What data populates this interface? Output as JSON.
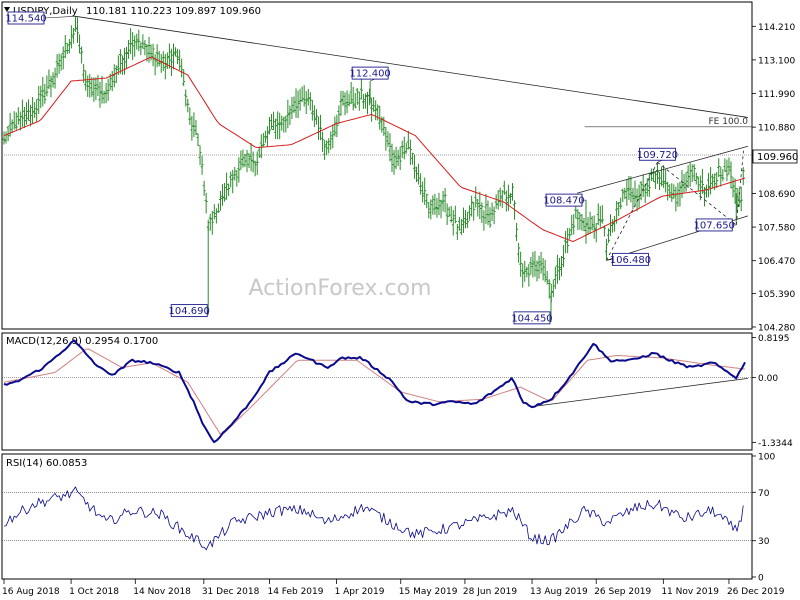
{
  "header": {
    "symbol": "USDJPY,Daily",
    "ohlc": "110.181 110.223 109.897 109.960",
    "collapse_icon": "triangle-down-icon"
  },
  "watermark": "ActionForex.com",
  "colors": {
    "price": "#2a8a2a",
    "ma": "#d81b1b",
    "macd": "#0a0a8c",
    "signal": "#d08080",
    "label_border": "#1a1a8c",
    "grid_dotted": "#000000"
  },
  "chart_data": [
    {
      "type": "bar",
      "title": "USDJPY,Daily",
      "subtitle": "110.181 110.223 109.897 109.960",
      "ylim": [
        104.28,
        114.88
      ],
      "y_ticks": [
        "114.210",
        "113.100",
        "111.990",
        "110.880",
        "109.960",
        "108.690",
        "107.580",
        "106.470",
        "105.390",
        "104.280"
      ],
      "last_price": "109.960",
      "x_ticks": [
        "16 Aug 2018",
        "1 Oct 2018",
        "14 Nov 2018",
        "31 Dec 2018",
        "14 Feb 2019",
        "1 Apr 2019",
        "15 May 2019",
        "28 Jun 2019",
        "13 Aug 2019",
        "26 Sep 2019",
        "11 Nov 2019",
        "26 Dec 2019"
      ],
      "x_range": [
        "2018-08-16",
        "2020-01-06"
      ],
      "series": [
        {
          "style": "ohlc-bars",
          "anchors": [
            [
              "2018-08-16",
              110.5
            ],
            [
              "2018-08-25",
              111.1
            ],
            [
              "2018-09-05",
              111.4
            ],
            [
              "2018-09-20",
              112.6
            ],
            [
              "2018-10-04",
              114.2
            ],
            [
              "2018-10-12",
              112.2
            ],
            [
              "2018-10-25",
              112.0
            ],
            [
              "2018-11-05",
              113.1
            ],
            [
              "2018-11-13",
              113.8
            ],
            [
              "2018-11-25",
              113.3
            ],
            [
              "2018-12-05",
              113.0
            ],
            [
              "2018-12-14",
              113.3
            ],
            [
              "2018-12-21",
              111.2
            ],
            [
              "2018-12-28",
              110.3
            ],
            [
              "2019-01-03",
              107.6
            ],
            [
              "2019-01-11",
              108.4
            ],
            [
              "2019-01-24",
              109.6
            ],
            [
              "2019-02-05",
              109.8
            ],
            [
              "2019-02-14",
              110.8
            ],
            [
              "2019-02-25",
              111.1
            ],
            [
              "2019-03-05",
              111.8
            ],
            [
              "2019-03-15",
              111.6
            ],
            [
              "2019-03-25",
              110.1
            ],
            [
              "2019-04-05",
              111.7
            ],
            [
              "2019-04-20",
              111.9
            ],
            [
              "2019-04-30",
              111.3
            ],
            [
              "2019-05-10",
              109.8
            ],
            [
              "2019-05-20",
              110.3
            ],
            [
              "2019-06-03",
              108.2
            ],
            [
              "2019-06-14",
              108.4
            ],
            [
              "2019-06-25",
              107.4
            ],
            [
              "2019-07-05",
              108.4
            ],
            [
              "2019-07-15",
              107.9
            ],
            [
              "2019-07-25",
              108.7
            ],
            [
              "2019-07-31",
              108.6
            ],
            [
              "2019-08-06",
              105.9
            ],
            [
              "2019-08-20",
              106.5
            ],
            [
              "2019-08-26",
              105.4
            ],
            [
              "2019-09-05",
              106.9
            ],
            [
              "2019-09-12",
              108.0
            ],
            [
              "2019-09-20",
              107.6
            ],
            [
              "2019-10-01",
              107.8
            ],
            [
              "2019-10-03",
              107.0
            ],
            [
              "2019-10-15",
              108.7
            ],
            [
              "2019-10-25",
              108.7
            ],
            [
              "2019-11-05",
              109.2
            ],
            [
              "2019-11-12",
              109.0
            ],
            [
              "2019-11-20",
              108.5
            ],
            [
              "2019-11-30",
              109.5
            ],
            [
              "2019-12-10",
              108.7
            ],
            [
              "2019-12-19",
              109.4
            ],
            [
              "2019-12-26",
              109.5
            ],
            [
              "2019-12-31",
              108.7
            ],
            [
              "2020-01-03",
              108.2
            ],
            [
              "2020-01-06",
              109.96
            ]
          ]
        },
        {
          "style": "moving-average",
          "anchors": [
            [
              "2018-08-16",
              110.6
            ],
            [
              "2018-09-10",
              111.1
            ],
            [
              "2018-10-01",
              112.4
            ],
            [
              "2018-10-25",
              112.5
            ],
            [
              "2018-11-25",
              113.2
            ],
            [
              "2018-12-20",
              112.6
            ],
            [
              "2019-01-10",
              111.0
            ],
            [
              "2019-02-05",
              110.2
            ],
            [
              "2019-03-01",
              110.3
            ],
            [
              "2019-04-01",
              111.0
            ],
            [
              "2019-04-25",
              111.3
            ],
            [
              "2019-05-25",
              110.6
            ],
            [
              "2019-06-25",
              108.9
            ],
            [
              "2019-07-25",
              108.4
            ],
            [
              "2019-08-20",
              107.5
            ],
            [
              "2019-09-10",
              107.1
            ],
            [
              "2019-10-10",
              107.8
            ],
            [
              "2019-11-10",
              108.6
            ],
            [
              "2019-12-10",
              108.8
            ],
            [
              "2020-01-06",
              109.2
            ]
          ]
        }
      ],
      "annotations": [
        "114.540",
        "112.400",
        "104.690",
        "108.470",
        "109.720",
        "106.480",
        "107.650",
        "104.450",
        "FE 100.0"
      ],
      "markers": [
        {
          "label": "114.540",
          "date": "2018-10-04",
          "value": 114.54
        },
        {
          "label": "112.400",
          "date": "2019-04-24",
          "value": 112.4
        },
        {
          "label": "104.690",
          "date": "2019-01-03",
          "value": 104.69
        },
        {
          "label": "108.470",
          "date": "2019-09-19",
          "value": 108.47
        },
        {
          "label": "109.720",
          "date": "2019-11-07",
          "value": 109.72
        },
        {
          "label": "106.480",
          "date": "2019-10-03",
          "value": 106.48
        },
        {
          "label": "107.650",
          "date": "2019-12-31",
          "value": 107.65
        },
        {
          "label": "104.450",
          "date": "2019-08-26",
          "value": 104.45
        }
      ],
      "trendlines": [
        {
          "style": "solid",
          "from": [
            "2018-10-04",
            114.54
          ],
          "to": [
            "2020-01-08",
            111.2
          ]
        },
        {
          "style": "solid",
          "from": [
            "2019-09-13",
            108.7
          ],
          "to": [
            "2020-01-08",
            110.25
          ]
        },
        {
          "style": "solid",
          "from": [
            "2019-10-03",
            106.48
          ],
          "to": [
            "2020-01-08",
            107.95
          ]
        },
        {
          "style": "dashed",
          "from": [
            "2019-10-03",
            106.48
          ],
          "to": [
            "2019-11-07",
            109.72
          ]
        },
        {
          "style": "dashed",
          "from": [
            "2019-11-07",
            109.72
          ],
          "to": [
            "2019-12-31",
            107.65
          ]
        },
        {
          "style": "dashed",
          "from": [
            "2019-12-31",
            107.65
          ],
          "to": [
            "2020-01-05",
            110.1
          ]
        }
      ],
      "level_lines": [
        {
          "label": "FE 100.0",
          "value": 110.89,
          "from": "2019-09-18",
          "style": "solid"
        },
        {
          "value": 109.96,
          "style": "dotted"
        }
      ]
    },
    {
      "type": "line",
      "title": "MACD(12,26,9) 0.2954 0.1700",
      "ylim": [
        -1.45,
        0.87
      ],
      "y_ticks": [
        "0.8195",
        "0.00",
        "-1.3344"
      ],
      "y_tick_values": [
        0.8195,
        0.0,
        -1.3344
      ],
      "series": [
        {
          "style": "macd",
          "anchors": [
            [
              "2018-08-16",
              -0.15
            ],
            [
              "2018-08-24",
              -0.1
            ],
            [
              "2018-09-12",
              0.2
            ],
            [
              "2018-10-03",
              0.75
            ],
            [
              "2018-10-20",
              0.2
            ],
            [
              "2018-10-30",
              0.05
            ],
            [
              "2018-11-12",
              0.35
            ],
            [
              "2018-11-25",
              0.3
            ],
            [
              "2018-12-14",
              0.1
            ],
            [
              "2018-12-24",
              -0.5
            ],
            [
              "2018-12-31",
              -1.0
            ],
            [
              "2019-01-07",
              -1.33
            ],
            [
              "2019-01-18",
              -1.0
            ],
            [
              "2019-02-01",
              -0.5
            ],
            [
              "2019-02-14",
              0.1
            ],
            [
              "2019-03-05",
              0.5
            ],
            [
              "2019-03-25",
              0.2
            ],
            [
              "2019-04-05",
              0.4
            ],
            [
              "2019-04-18",
              0.4
            ],
            [
              "2019-05-08",
              -0.05
            ],
            [
              "2019-05-20",
              -0.5
            ],
            [
              "2019-06-05",
              -0.55
            ],
            [
              "2019-06-20",
              -0.5
            ],
            [
              "2019-07-05",
              -0.55
            ],
            [
              "2019-07-22",
              -0.2
            ],
            [
              "2019-07-31",
              0.0
            ],
            [
              "2019-08-06",
              -0.5
            ],
            [
              "2019-08-13",
              -0.6
            ],
            [
              "2019-08-26",
              -0.45
            ],
            [
              "2019-09-05",
              -0.1
            ],
            [
              "2019-09-15",
              0.3
            ],
            [
              "2019-09-24",
              0.7
            ],
            [
              "2019-10-05",
              0.35
            ],
            [
              "2019-10-20",
              0.35
            ],
            [
              "2019-11-05",
              0.5
            ],
            [
              "2019-11-15",
              0.35
            ],
            [
              "2019-11-30",
              0.2
            ],
            [
              "2019-12-15",
              0.3
            ],
            [
              "2019-12-31",
              0.0
            ],
            [
              "2020-01-06",
              0.2954
            ]
          ]
        },
        {
          "style": "signal",
          "anchors": [
            [
              "2018-08-16",
              -0.1
            ],
            [
              "2018-09-20",
              0.1
            ],
            [
              "2018-10-12",
              0.6
            ],
            [
              "2018-11-05",
              0.2
            ],
            [
              "2018-11-25",
              0.3
            ],
            [
              "2018-12-20",
              -0.1
            ],
            [
              "2019-01-12",
              -1.2
            ],
            [
              "2019-02-05",
              -0.5
            ],
            [
              "2019-03-05",
              0.35
            ],
            [
              "2019-04-15",
              0.35
            ],
            [
              "2019-05-15",
              -0.3
            ],
            [
              "2019-06-10",
              -0.5
            ],
            [
              "2019-07-10",
              -0.45
            ],
            [
              "2019-08-05",
              -0.2
            ],
            [
              "2019-08-26",
              -0.5
            ],
            [
              "2019-09-20",
              0.35
            ],
            [
              "2019-10-10",
              0.45
            ],
            [
              "2019-11-10",
              0.4
            ],
            [
              "2019-12-15",
              0.25
            ],
            [
              "2020-01-06",
              0.17
            ]
          ]
        }
      ],
      "trendlines": [
        {
          "style": "solid",
          "from": [
            "2019-08-13",
            -0.6
          ],
          "to": [
            "2020-01-08",
            -0.02
          ]
        }
      ]
    },
    {
      "type": "line",
      "title": "RSI(14) 60.0853",
      "ylim": [
        0,
        100
      ],
      "y_ticks": [
        "100",
        "70",
        "30",
        "0"
      ],
      "y_tick_values": [
        100,
        70,
        30,
        0
      ],
      "series": [
        {
          "style": "rsi",
          "anchors": [
            [
              "2018-08-16",
              45
            ],
            [
              "2018-09-05",
              60
            ],
            [
              "2018-10-04",
              70
            ],
            [
              "2018-10-25",
              45
            ],
            [
              "2018-11-12",
              55
            ],
            [
              "2018-12-01",
              52
            ],
            [
              "2018-12-20",
              35
            ],
            [
              "2019-01-03",
              25
            ],
            [
              "2019-01-20",
              45
            ],
            [
              "2019-02-20",
              55
            ],
            [
              "2019-03-10",
              55
            ],
            [
              "2019-03-25",
              45
            ],
            [
              "2019-04-20",
              58
            ],
            [
              "2019-05-08",
              45
            ],
            [
              "2019-05-25",
              35
            ],
            [
              "2019-06-15",
              40
            ],
            [
              "2019-07-10",
              48
            ],
            [
              "2019-07-31",
              55
            ],
            [
              "2019-08-13",
              32
            ],
            [
              "2019-08-26",
              30
            ],
            [
              "2019-09-18",
              55
            ],
            [
              "2019-10-03",
              45
            ],
            [
              "2019-10-25",
              58
            ],
            [
              "2019-11-07",
              60
            ],
            [
              "2019-11-25",
              48
            ],
            [
              "2019-12-15",
              55
            ],
            [
              "2019-12-31",
              38
            ],
            [
              "2020-01-06",
              60.0853
            ]
          ]
        }
      ],
      "level_lines": [
        {
          "value": 70,
          "style": "dotted"
        },
        {
          "value": 30,
          "style": "dotted"
        }
      ]
    }
  ]
}
